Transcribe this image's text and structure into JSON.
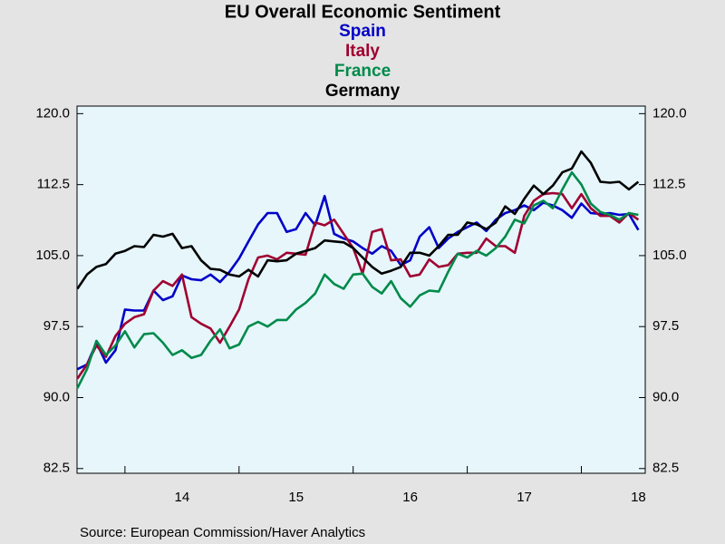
{
  "chart_data": {
    "type": "line",
    "title": "EU Overall Economic Sentiment",
    "source": "Source:  European Commission/Haver Analytics",
    "x": [
      2013.583,
      2013.667,
      2013.75,
      2013.833,
      2013.917,
      2014,
      2014.083,
      2014.167,
      2014.25,
      2014.333,
      2014.417,
      2014.5,
      2014.583,
      2014.667,
      2014.75,
      2014.833,
      2014.917,
      2015,
      2015.083,
      2015.167,
      2015.25,
      2015.333,
      2015.417,
      2015.5,
      2015.583,
      2015.667,
      2015.75,
      2015.833,
      2015.917,
      2016,
      2016.083,
      2016.167,
      2016.25,
      2016.333,
      2016.417,
      2016.5,
      2016.583,
      2016.667,
      2016.75,
      2016.833,
      2016.917,
      2017,
      2017.083,
      2017.167,
      2017.25,
      2017.333,
      2017.417,
      2017.5,
      2017.583,
      2017.667,
      2017.75,
      2017.833,
      2017.917,
      2018,
      2018.083,
      2018.167,
      2018.25,
      2018.333,
      2018.417,
      2018.5
    ],
    "series": [
      {
        "name": "Spain",
        "color": "#0000c8",
        "values": [
          93,
          93.5,
          95.8,
          93.7,
          95,
          99.3,
          99.2,
          99.2,
          101.3,
          100.3,
          100.7,
          102.9,
          102.5,
          102.4,
          103,
          102.2,
          103.3,
          104.7,
          106.5,
          108.3,
          109.5,
          109.5,
          107.5,
          107.8,
          109.5,
          108.2,
          111.3,
          107.3,
          106.8,
          106.5,
          105.8,
          105.2,
          106,
          105.5,
          104,
          104.5,
          107,
          108,
          105.8,
          106.8,
          107.5,
          108,
          108.5,
          107.6,
          108.8,
          109.5,
          109.8,
          110.3,
          109.8,
          110.6,
          110.3,
          109.8,
          109,
          110.5,
          109.5,
          109.4,
          109.5,
          109.3,
          109.4,
          107.7
        ]
      },
      {
        "name": "Italy",
        "color": "#a00030",
        "values": [
          92,
          93.5,
          95.5,
          94.3,
          96.5,
          97.8,
          98.5,
          98.8,
          101.3,
          102.3,
          101.8,
          103,
          98.5,
          97.8,
          97.3,
          95.8,
          97.5,
          99.3,
          102.5,
          104.8,
          105,
          104.6,
          105.3,
          105.2,
          105.1,
          108.5,
          108.2,
          108.8,
          107.3,
          105.8,
          103.1,
          107.5,
          107.8,
          104.5,
          104.6,
          102.8,
          103,
          104.6,
          103.8,
          104,
          105.2,
          105.3,
          105.3,
          106.8,
          106,
          106,
          105.3,
          109.2,
          110.8,
          111.5,
          111.6,
          111.5,
          110,
          111.5,
          110,
          109.2,
          109.2,
          108.5,
          109.5,
          108.8
        ]
      },
      {
        "name": "France",
        "color": "#008a4a",
        "values": [
          91,
          93,
          96,
          94.5,
          95.5,
          97,
          95.3,
          96.7,
          96.8,
          95.8,
          94.5,
          95,
          94.2,
          94.5,
          96,
          97.2,
          95.2,
          95.6,
          97.5,
          98,
          97.5,
          98.2,
          98.2,
          99.3,
          100,
          101,
          103,
          102,
          101.5,
          103,
          103.1,
          101.7,
          101,
          102.3,
          100.5,
          99.6,
          100.8,
          101.3,
          101.2,
          103.3,
          105.2,
          104.8,
          105.5,
          105,
          105.8,
          107,
          108.8,
          108.4,
          110.3,
          110.8,
          110,
          112,
          113.8,
          112.5,
          110.5,
          109.6,
          109.3,
          108.8,
          109.5,
          109.3
        ]
      },
      {
        "name": "Germany",
        "color": "#000000",
        "values": [
          101.5,
          103,
          103.8,
          104.1,
          105.2,
          105.5,
          106,
          105.9,
          107.2,
          107,
          107.3,
          105.8,
          106,
          104.5,
          103.6,
          103.5,
          103,
          102.8,
          103.5,
          102.8,
          104.5,
          104.4,
          104.5,
          105.2,
          105.5,
          105.8,
          106.6,
          106.5,
          106.4,
          105.8,
          104.8,
          103.8,
          103.1,
          103.4,
          103.8,
          105.3,
          105.3,
          105,
          106,
          107.2,
          107.2,
          108.5,
          108.3,
          107.8,
          108.5,
          110.2,
          109.4,
          111,
          112.4,
          111.5,
          112.4,
          113.8,
          114.2,
          116,
          114.8,
          112.8,
          112.7,
          112.8,
          112,
          112.8
        ]
      }
    ],
    "xlim": [
      2013.58,
      2018.56
    ],
    "xticks": [
      {
        "value": 2014.5,
        "label": "14"
      },
      {
        "value": 2015.5,
        "label": "15"
      },
      {
        "value": 2016.5,
        "label": "16"
      },
      {
        "value": 2017.5,
        "label": "17"
      },
      {
        "value": 2018.5,
        "label": "18"
      }
    ],
    "xminorticks": [
      2014,
      2015,
      2016,
      2017,
      2018
    ],
    "ylim": [
      82.0,
      120.8
    ],
    "yticks": [
      {
        "value": 120,
        "label": "120.0"
      },
      112.5,
      {
        "value": 105,
        "label": "105.0"
      },
      97.5,
      {
        "value": 90,
        "label": "90.0"
      },
      82.5
    ],
    "right_axis": true
  }
}
